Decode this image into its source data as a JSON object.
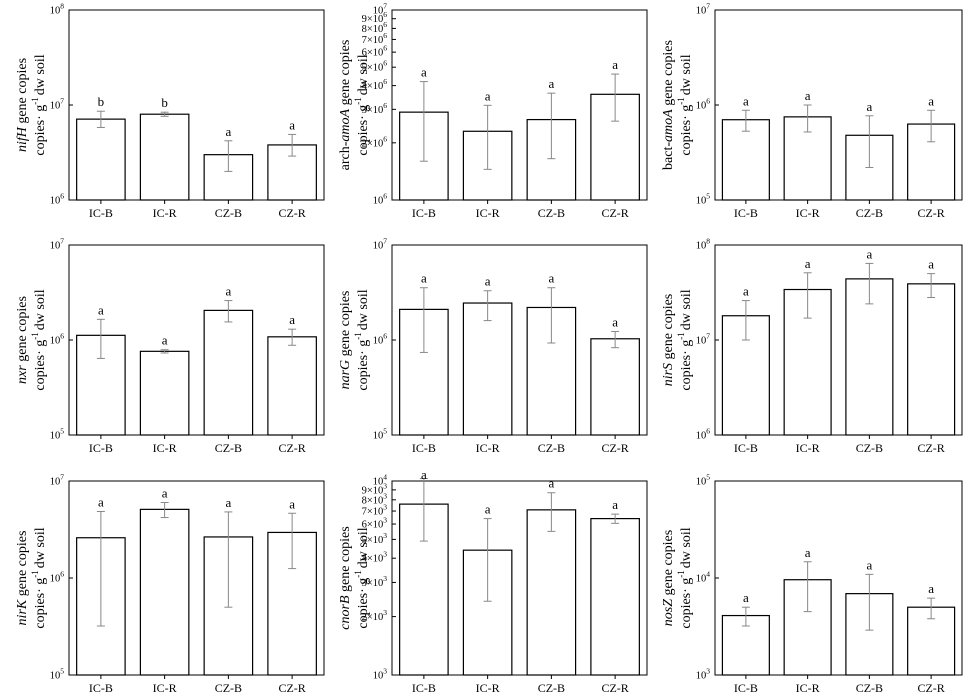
{
  "figure_caption": "",
  "chart_data": [
    {
      "type": "bar",
      "id": "nifH",
      "gene": "nifH",
      "ylabel_line1": " gene copies",
      "ylabel_line2_a": "copies· g",
      "ylabel_line2_sup": "-1",
      "ylabel_line2_b": "dw soil",
      "yscale": "log",
      "categories": [
        "IC-B",
        "IC-R",
        "CZ-B",
        "CZ-R"
      ],
      "values": [
        7100000,
        8000000,
        3000000,
        3800000
      ],
      "err_low": [
        5800000,
        7600000,
        2000000,
        2900000
      ],
      "err_high": [
        8600000,
        8400000,
        4200000,
        4900000
      ],
      "letters": [
        "b",
        "b",
        "a",
        "a"
      ],
      "ylim": [
        1000000,
        100000000
      ],
      "ticks": [
        {
          "v": 1000000,
          "m": "10",
          "e": "6"
        },
        {
          "v": 10000000,
          "m": "10",
          "e": "7"
        },
        {
          "v": 100000000,
          "m": "10",
          "e": "8"
        }
      ]
    },
    {
      "type": "bar",
      "id": "arch-amoA",
      "gene_prefix": "arch-",
      "gene": "amoA",
      "ylabel_line1": " gene copies",
      "ylabel_line2_a": "copies· g",
      "ylabel_line2_sup": "-1",
      "ylabel_line2_b": "dw soil",
      "yscale": "log",
      "categories": [
        "IC-B",
        "IC-R",
        "CZ-B",
        "CZ-R"
      ],
      "values": [
        2900000,
        2300000,
        2650000,
        3600000
      ],
      "err_low": [
        1600000,
        1450000,
        1650000,
        2600000
      ],
      "err_high": [
        4200000,
        3150000,
        3650000,
        4600000
      ],
      "letters": [
        "a",
        "a",
        "a",
        "a"
      ],
      "ylim": [
        1000000,
        10000000
      ],
      "ticks": [
        {
          "v": 1000000,
          "m": "10",
          "e": "6"
        },
        {
          "v": 2000000,
          "m": "2×10",
          "e": "6"
        },
        {
          "v": 3000000,
          "m": "3×10",
          "e": "6"
        },
        {
          "v": 4000000,
          "m": "4×10",
          "e": "6"
        },
        {
          "v": 5000000,
          "m": "5×10",
          "e": "6"
        },
        {
          "v": 6000000,
          "m": "6×10",
          "e": "6"
        },
        {
          "v": 7000000,
          "m": "7×10",
          "e": "6"
        },
        {
          "v": 8000000,
          "m": "8×10",
          "e": "6"
        },
        {
          "v": 9000000,
          "m": "9×10",
          "e": "6"
        },
        {
          "v": 10000000,
          "m": "10",
          "e": "7"
        }
      ]
    },
    {
      "type": "bar",
      "id": "bact-amoA",
      "gene_prefix": "bact-",
      "gene": "amoA",
      "ylabel_line1": " gene copies",
      "ylabel_line2_a": "copies· g",
      "ylabel_line2_sup": "-1",
      "ylabel_line2_b": "dw soil",
      "yscale": "log",
      "categories": [
        "IC-B",
        "IC-R",
        "CZ-B",
        "CZ-R"
      ],
      "values": [
        700000,
        750000,
        480000,
        630000
      ],
      "err_low": [
        530000,
        520000,
        220000,
        410000
      ],
      "err_high": [
        880000,
        1000000,
        770000,
        880000
      ],
      "letters": [
        "a",
        "a",
        "a",
        "a"
      ],
      "ylim": [
        100000,
        10000000
      ],
      "ticks": [
        {
          "v": 100000,
          "m": "10",
          "e": "5"
        },
        {
          "v": 1000000,
          "m": "10",
          "e": "6"
        },
        {
          "v": 10000000,
          "m": "10",
          "e": "7"
        }
      ]
    },
    {
      "type": "bar",
      "id": "nxr",
      "gene": "nxr",
      "ylabel_line1": " gene copies",
      "ylabel_line2_a": "copies· g",
      "ylabel_line2_sup": "-1",
      "ylabel_line2_b": "dw soil",
      "yscale": "log",
      "categories": [
        "IC-B",
        "IC-R",
        "CZ-B",
        "CZ-R"
      ],
      "values": [
        1120000,
        760000,
        2050000,
        1080000
      ],
      "err_low": [
        640000,
        730000,
        1550000,
        880000
      ],
      "err_high": [
        1650000,
        790000,
        2600000,
        1300000
      ],
      "letters": [
        "a",
        "a",
        "a",
        "a"
      ],
      "ylim": [
        100000,
        10000000
      ],
      "ticks": [
        {
          "v": 100000,
          "m": "10",
          "e": "5"
        },
        {
          "v": 1000000,
          "m": "10",
          "e": "6"
        },
        {
          "v": 10000000,
          "m": "10",
          "e": "7"
        }
      ]
    },
    {
      "type": "bar",
      "id": "narG",
      "gene": "narG",
      "ylabel_line1": " gene copies",
      "ylabel_line2_a": "copies· g",
      "ylabel_line2_sup": "-1",
      "ylabel_line2_b": "dw soil",
      "yscale": "log",
      "categories": [
        "IC-B",
        "IC-R",
        "CZ-B",
        "CZ-R"
      ],
      "values": [
        2100000,
        2450000,
        2200000,
        1030000
      ],
      "err_low": [
        740000,
        1600000,
        930000,
        830000
      ],
      "err_high": [
        3550000,
        3300000,
        3550000,
        1230000
      ],
      "letters": [
        "a",
        "a",
        "a",
        "a"
      ],
      "ylim": [
        100000,
        10000000
      ],
      "ticks": [
        {
          "v": 100000,
          "m": "10",
          "e": "5"
        },
        {
          "v": 1000000,
          "m": "10",
          "e": "6"
        },
        {
          "v": 10000000,
          "m": "10",
          "e": "7"
        }
      ]
    },
    {
      "type": "bar",
      "id": "nirS",
      "gene": "nirS",
      "ylabel_line1": " gene copies",
      "ylabel_line2_a": "copies· g",
      "ylabel_line2_sup": "-1",
      "ylabel_line2_b": "dw soil",
      "yscale": "log",
      "categories": [
        "IC-B",
        "IC-R",
        "CZ-B",
        "CZ-R"
      ],
      "values": [
        18000000,
        34000000,
        44000000,
        39000000
      ],
      "err_low": [
        10000000,
        17000000,
        24000000,
        28000000
      ],
      "err_high": [
        26000000,
        51000000,
        64000000,
        50000000
      ],
      "letters": [
        "a",
        "a",
        "a",
        "a"
      ],
      "ylim": [
        1000000,
        100000000
      ],
      "ticks": [
        {
          "v": 1000000,
          "m": "10",
          "e": "6"
        },
        {
          "v": 10000000,
          "m": "10",
          "e": "7"
        },
        {
          "v": 100000000,
          "m": "10",
          "e": "8"
        }
      ]
    },
    {
      "type": "bar",
      "id": "nirK",
      "gene": "nirK",
      "ylabel_line1": " gene copies",
      "ylabel_line2_a": "copies· g",
      "ylabel_line2_sup": "-1",
      "ylabel_line2_b": "dw soil",
      "yscale": "log",
      "categories": [
        "IC-B",
        "IC-R",
        "CZ-B",
        "CZ-R"
      ],
      "values": [
        2600000,
        5100000,
        2650000,
        2950000
      ],
      "err_low": [
        320000,
        4200000,
        500000,
        1250000
      ],
      "err_high": [
        4850000,
        6000000,
        4800000,
        4650000
      ],
      "letters": [
        "a",
        "a",
        "a",
        "a"
      ],
      "ylim": [
        100000,
        10000000
      ],
      "ticks": [
        {
          "v": 100000,
          "m": "10",
          "e": "5"
        },
        {
          "v": 1000000,
          "m": "10",
          "e": "6"
        },
        {
          "v": 10000000,
          "m": "10",
          "e": "7"
        }
      ]
    },
    {
      "type": "bar",
      "id": "cnorB",
      "gene": "cnorB",
      "ylabel_line1": " gene copies",
      "ylabel_line2_a": "copies· g",
      "ylabel_line2_sup": "-1",
      "ylabel_line2_b": "dw soil",
      "yscale": "log",
      "categories": [
        "IC-B",
        "IC-R",
        "CZ-B",
        "CZ-R"
      ],
      "values": [
        7600,
        4400,
        7100,
        6400
      ],
      "err_low": [
        4900,
        2400,
        5500,
        6050
      ],
      "err_high": [
        10300,
        6400,
        8700,
        6750
      ],
      "letters": [
        "a",
        "a",
        "a",
        "a"
      ],
      "ylim": [
        1000,
        10000
      ],
      "ticks": [
        {
          "v": 1000,
          "m": "10",
          "e": "3"
        },
        {
          "v": 2000,
          "m": "2×10",
          "e": "3"
        },
        {
          "v": 3000,
          "m": "3×10",
          "e": "3"
        },
        {
          "v": 4000,
          "m": "4×10",
          "e": "3"
        },
        {
          "v": 5000,
          "m": "5×10",
          "e": "3"
        },
        {
          "v": 6000,
          "m": "6×10",
          "e": "3"
        },
        {
          "v": 7000,
          "m": "7×10",
          "e": "3"
        },
        {
          "v": 8000,
          "m": "8×10",
          "e": "3"
        },
        {
          "v": 9000,
          "m": "9×10",
          "e": "3"
        },
        {
          "v": 10000,
          "m": "10",
          "e": "4"
        }
      ]
    },
    {
      "type": "bar",
      "id": "nosZ",
      "gene": "nosZ",
      "ylabel_line1": " gene copies",
      "ylabel_line2_a": "copies· g",
      "ylabel_line2_sup": "-1",
      "ylabel_line2_b": "dw soil",
      "yscale": "log",
      "categories": [
        "IC-B",
        "IC-R",
        "CZ-B",
        "CZ-R"
      ],
      "values": [
        4100,
        9600,
        6900,
        5000
      ],
      "err_low": [
        3200,
        4500,
        2900,
        3800
      ],
      "err_high": [
        5000,
        14700,
        10900,
        6200
      ],
      "letters": [
        "a",
        "a",
        "a",
        "a"
      ],
      "ylim": [
        1000,
        100000
      ],
      "ticks": [
        {
          "v": 1000,
          "m": "10",
          "e": "3"
        },
        {
          "v": 10000,
          "m": "10",
          "e": "4"
        },
        {
          "v": 100000,
          "m": "10",
          "e": "5"
        }
      ]
    }
  ]
}
